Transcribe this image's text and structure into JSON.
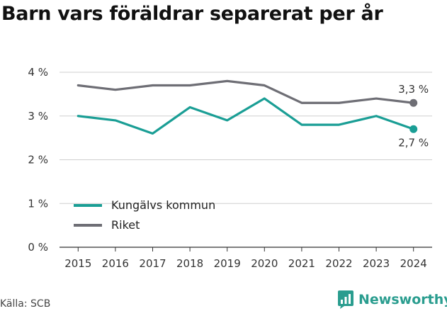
{
  "title": "Barn vars föräldrar separerat per år",
  "source": "Källa: SCB",
  "brand": {
    "name": "Newsworthy",
    "icon": "newsworthy-logo-icon",
    "color": "#2a9d8f"
  },
  "chart_data": {
    "type": "line",
    "title": "Barn vars föräldrar separerat per år",
    "xlabel": "",
    "ylabel": "",
    "x": [
      2015,
      2016,
      2017,
      2018,
      2019,
      2020,
      2021,
      2022,
      2023,
      2024
    ],
    "ylim": [
      0,
      4
    ],
    "yticks": [
      0,
      1,
      2,
      3,
      4
    ],
    "ytick_labels": [
      "0 %",
      "1 %",
      "2 %",
      "3 %",
      "4 %"
    ],
    "grid": "horizontal",
    "legend_position": "bottom-left",
    "series": [
      {
        "name": "Kungälvs kommun",
        "color": "#1a9e95",
        "values": [
          3.0,
          2.9,
          2.6,
          3.2,
          2.9,
          3.4,
          2.8,
          2.8,
          3.0,
          2.7
        ],
        "end_label": "2,7 %"
      },
      {
        "name": "Riket",
        "color": "#6e6e75",
        "values": [
          3.7,
          3.6,
          3.7,
          3.7,
          3.8,
          3.7,
          3.3,
          3.3,
          3.4,
          3.3
        ],
        "end_label": "3,3 %"
      }
    ]
  }
}
